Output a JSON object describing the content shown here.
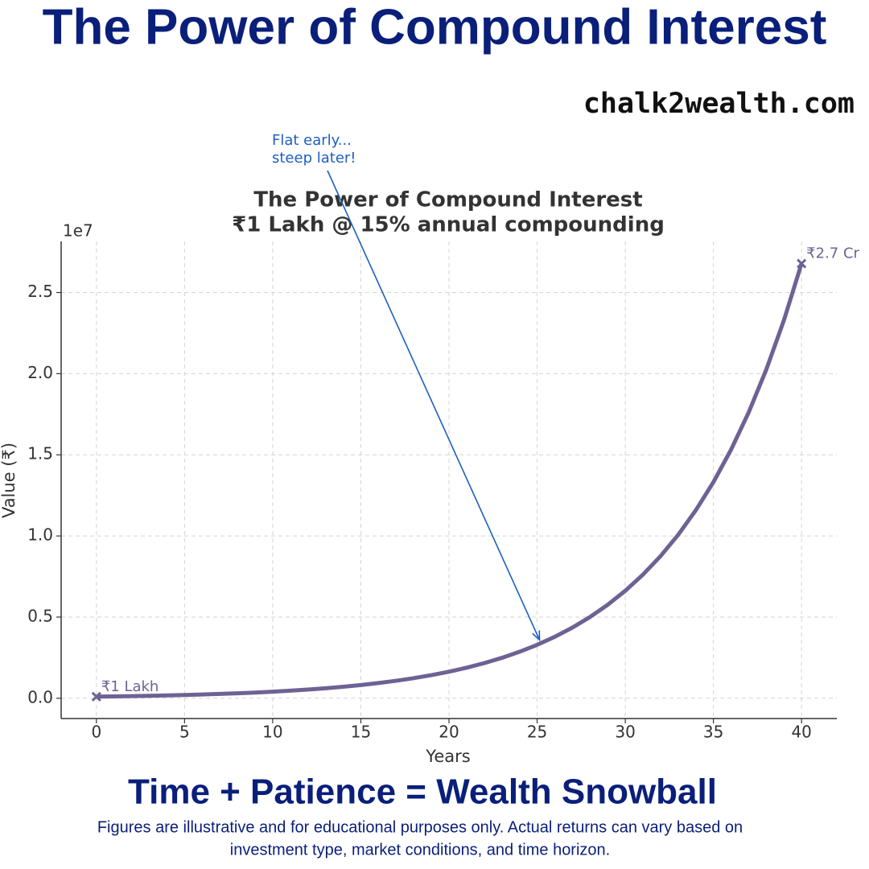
{
  "header": {
    "title": "The Power of Compound Interest",
    "site": "chalk2wealth.com"
  },
  "footer": {
    "tagline": "Time + Patience = Wealth Snowball",
    "disclaimer": [
      "Figures are illustrative and for educational purposes only. Actual returns can vary based on",
      "investment type, market conditions, and time horizon."
    ]
  },
  "chart_data": {
    "type": "line",
    "title": [
      "The Power of Compound Interest",
      "₹1 Lakh @ 15% annual compounding"
    ],
    "x_label": "Years",
    "y_label": "Value (₹)",
    "y_offset_label": "1e7",
    "x": [
      0,
      1,
      2,
      3,
      4,
      5,
      6,
      7,
      8,
      9,
      10,
      11,
      12,
      13,
      14,
      15,
      16,
      17,
      18,
      19,
      20,
      21,
      22,
      23,
      24,
      25,
      26,
      27,
      28,
      29,
      30,
      31,
      32,
      33,
      34,
      35,
      36,
      37,
      38,
      39,
      40
    ],
    "values": [
      100000,
      115000,
      132250,
      152088,
      174901,
      201136,
      231306,
      266002,
      305902,
      351788,
      404556,
      465239,
      535025,
      615279,
      707571,
      813706,
      935762,
      1076126,
      1237545,
      1423177,
      1636654,
      1882152,
      2164475,
      2489146,
      2862518,
      3291895,
      3785680,
      4353531,
      5006561,
      5757545,
      6621177,
      7614354,
      8756507,
      10069983,
      11580480,
      13317552,
      15315185,
      17612463,
      20254332,
      23292482,
      26786355
    ],
    "color": "#6e6294",
    "xlim": [
      -2,
      42
    ],
    "xticks": [
      0,
      5,
      10,
      15,
      20,
      25,
      30,
      35,
      40
    ],
    "ylim": [
      -1250000,
      28150000
    ],
    "yticks": [
      {
        "value": 0,
        "label": "0.0"
      },
      {
        "value": 5000000,
        "label": "0.5"
      },
      {
        "value": 10000000,
        "label": "1.0"
      },
      {
        "value": 15000000,
        "label": "1.5"
      },
      {
        "value": 20000000,
        "label": "2.0"
      },
      {
        "value": 25000000,
        "label": "2.5"
      }
    ],
    "grid": true,
    "annotations": [
      {
        "text": "₹1 Lakh",
        "x": 0
      },
      {
        "text": "₹2.7 Cr",
        "x": 40
      },
      {
        "text": [
          "Flat early...",
          "steep later!"
        ],
        "x": 25,
        "color": "#1f5fbf"
      }
    ]
  }
}
